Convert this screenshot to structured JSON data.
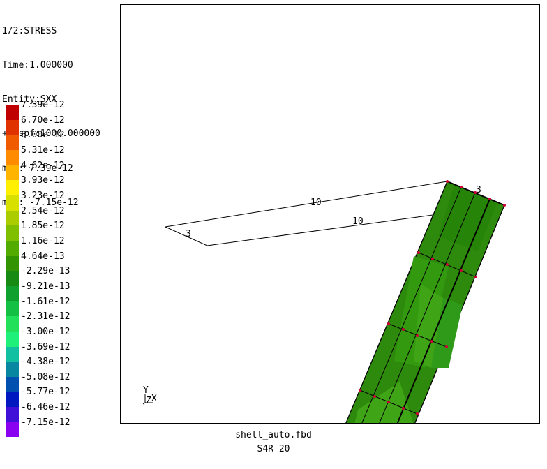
{
  "info": {
    "lines": [
      "1/2:STRESS",
      "Time:1.000000",
      "Entity:SXX",
      "+Dispf:1000.000000",
      "max: 7.39e-12",
      "min: -7.15e-12"
    ]
  },
  "legend": {
    "entries": [
      {
        "label": "7.39e-12",
        "color": "#c00000"
      },
      {
        "label": "6.70e-12",
        "color": "#e03200"
      },
      {
        "label": "6.00e-12",
        "color": "#f05a00"
      },
      {
        "label": "5.31e-12",
        "color": "#ff8c00"
      },
      {
        "label": "4.62e-12",
        "color": "#ffb400"
      },
      {
        "label": "3.93e-12",
        "color": "#ffef00"
      },
      {
        "label": "3.23e-12",
        "color": "#d8e000"
      },
      {
        "label": "2.54e-12",
        "color": "#aacc00"
      },
      {
        "label": "1.85e-12",
        "color": "#7fbf00"
      },
      {
        "label": "1.16e-12",
        "color": "#52ab00"
      },
      {
        "label": "4.64e-13",
        "color": "#319400"
      },
      {
        "label": "-2.29e-13",
        "color": "#168a12"
      },
      {
        "label": "-9.21e-13",
        "color": "#0fa02d"
      },
      {
        "label": "-1.61e-12",
        "color": "#14c043"
      },
      {
        "label": "-2.31e-12",
        "color": "#22e05a"
      },
      {
        "label": "-3.00e-12",
        "color": "#1ef07a"
      },
      {
        "label": "-3.69e-12",
        "color": "#10c0a0"
      },
      {
        "label": "-4.38e-12",
        "color": "#0888a0"
      },
      {
        "label": "-5.08e-12",
        "color": "#0050b0"
      },
      {
        "label": "-5.77e-12",
        "color": "#0018c0"
      },
      {
        "label": "-6.46e-12",
        "color": "#4010d8"
      },
      {
        "label": "-7.15e-12",
        "color": "#8a00f0"
      }
    ],
    "last_label": ""
  },
  "viewport": {
    "edge_labels": [
      "10",
      "10",
      "3",
      "3"
    ],
    "axis_labels": {
      "y": "Y",
      "z": "Z",
      "x": "X"
    },
    "colors": {
      "shell_dark": "#2e8a0c",
      "shell_light": "#3fa517",
      "node": "#cc0033",
      "mesh_line": "#000000"
    }
  },
  "footer": {
    "file": "shell_auto.fbd",
    "element": "S4R 20"
  }
}
